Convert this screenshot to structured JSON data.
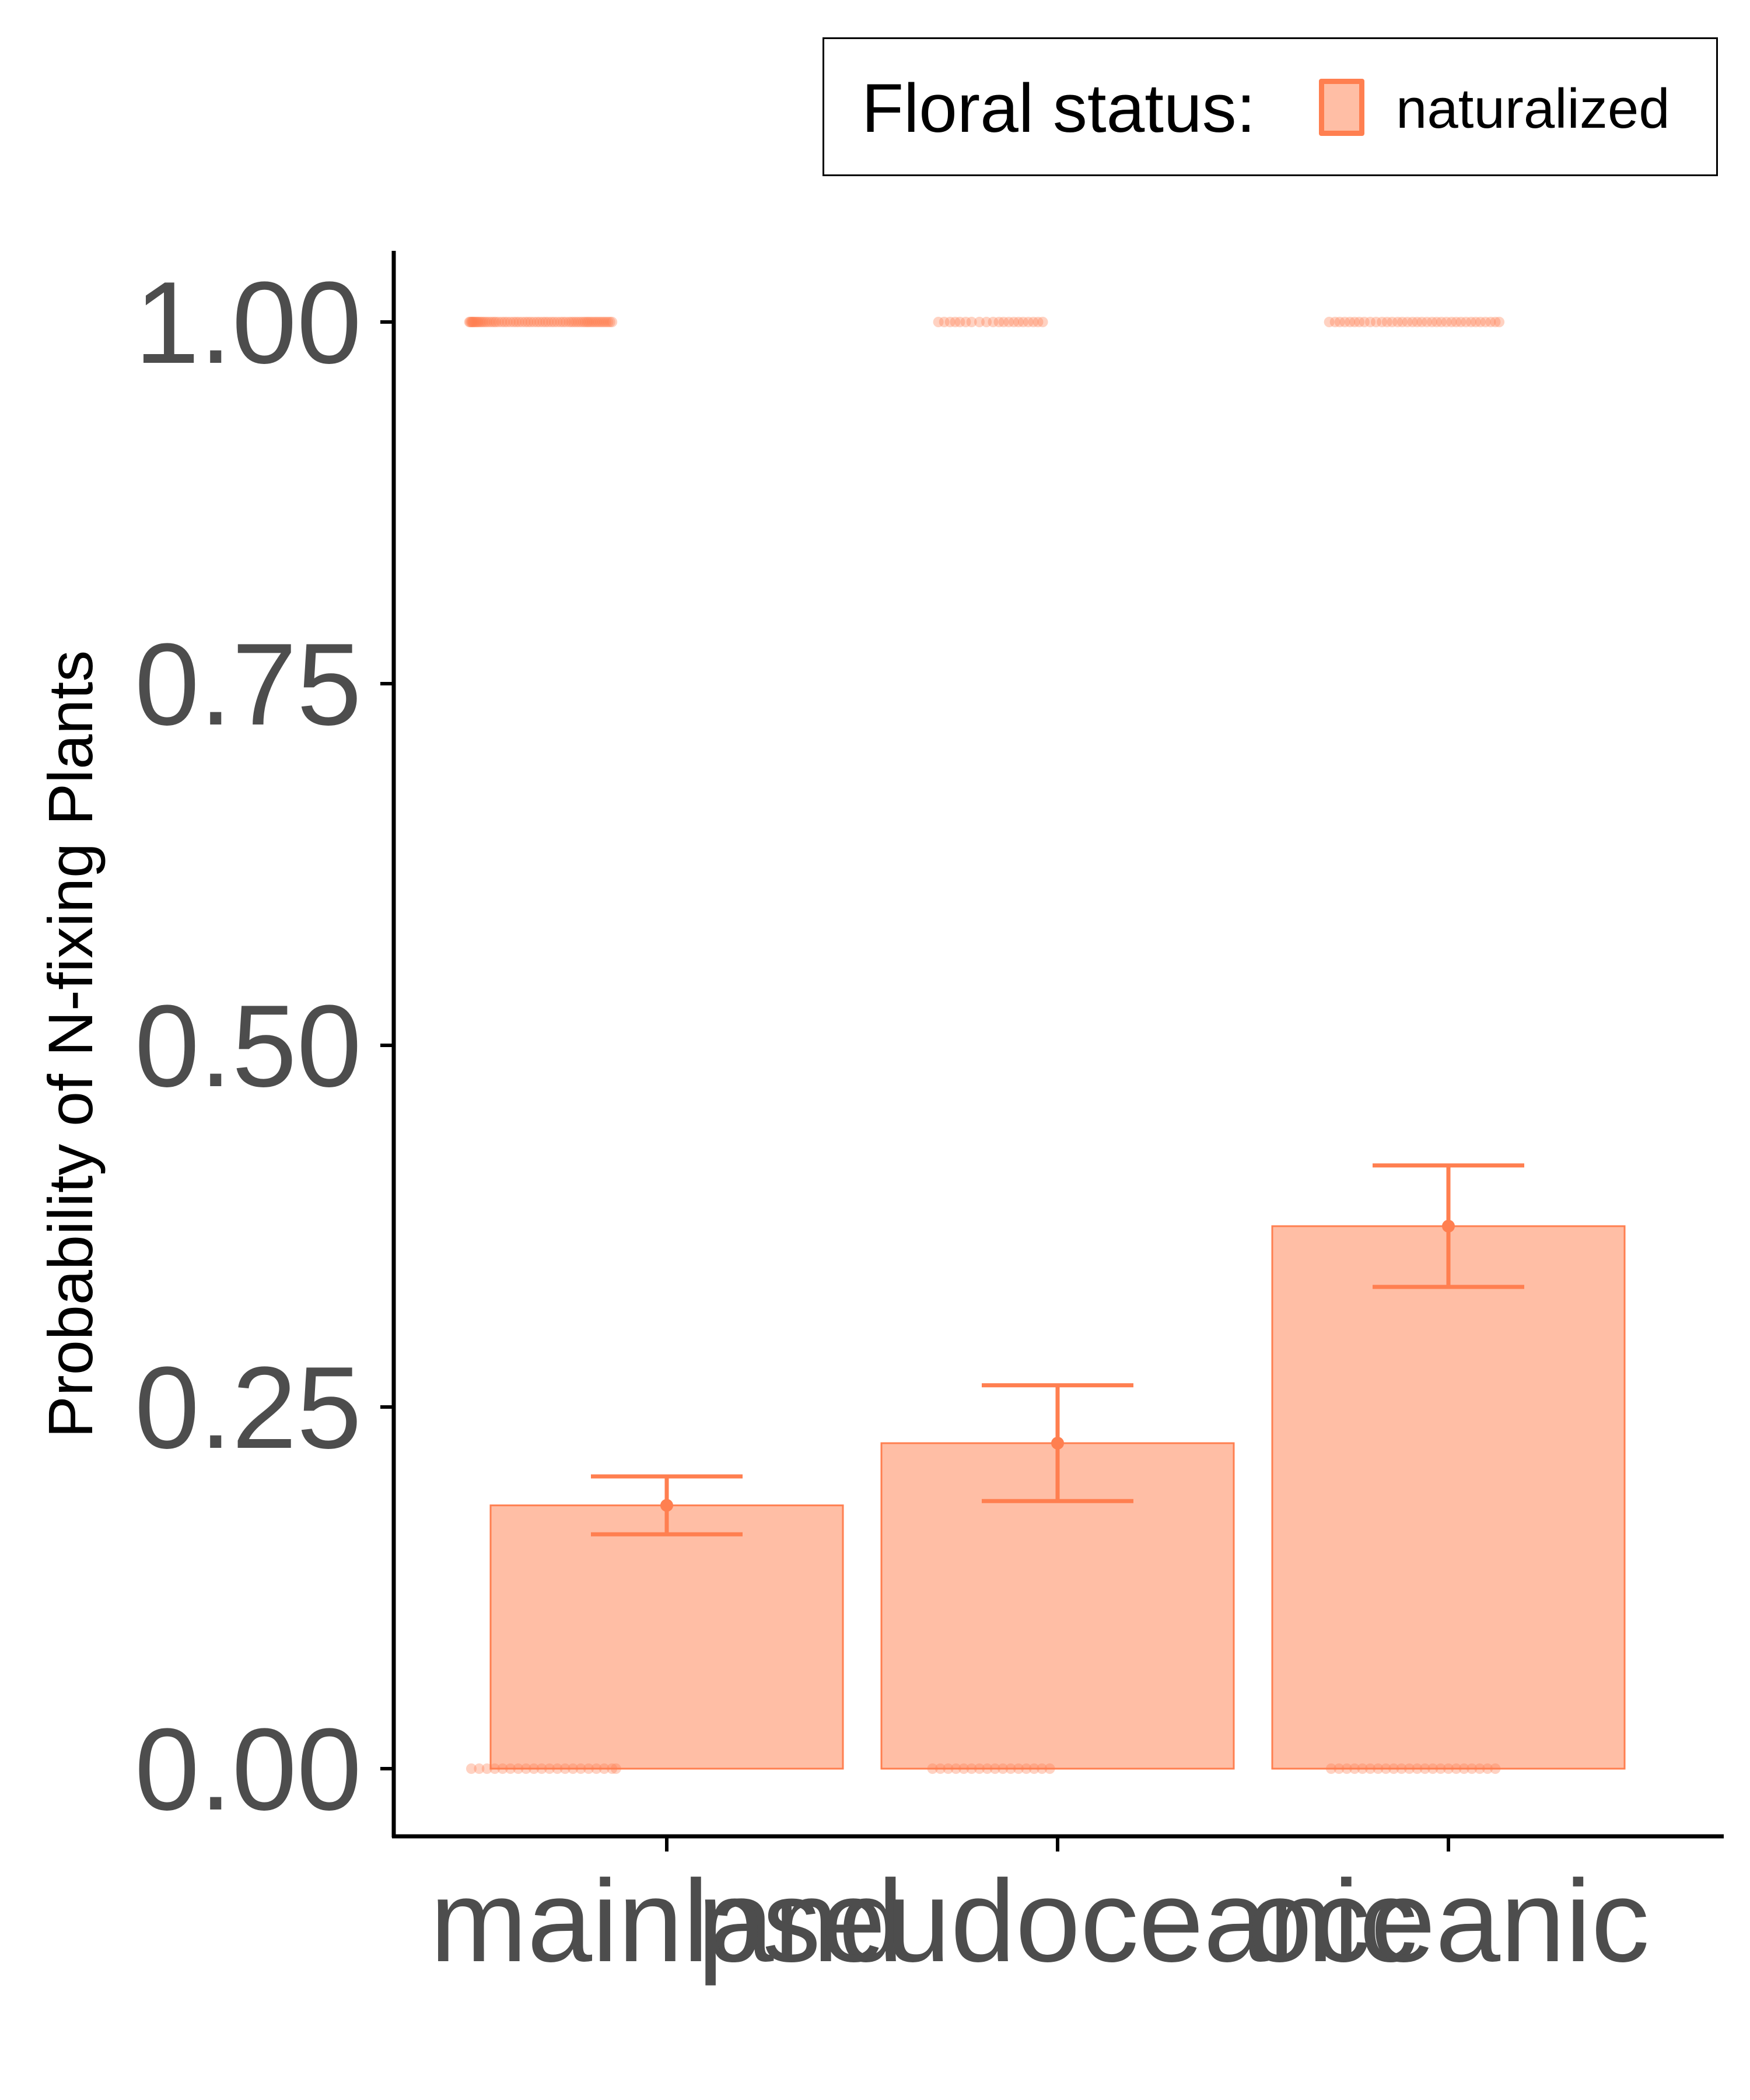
{
  "chart_data": {
    "type": "bar",
    "categories": [
      "mainland",
      "pseudoceanic",
      "oceanic"
    ],
    "series": [
      {
        "name": "naturalized",
        "values": [
          0.182,
          0.225,
          0.375
        ],
        "ci_lower": [
          0.162,
          0.185,
          0.333
        ],
        "ci_upper": [
          0.202,
          0.265,
          0.417
        ]
      }
    ],
    "observations": {
      "at_1": [
        [
          0.495,
          0.497,
          0.5,
          0.502,
          0.504,
          0.506,
          0.509,
          0.512,
          0.515,
          0.518,
          0.522,
          0.526,
          0.53,
          0.535,
          0.54,
          0.546,
          0.552,
          0.558,
          0.563,
          0.57,
          0.578,
          0.585,
          0.592,
          0.6,
          0.608,
          0.615,
          0.622,
          0.63,
          0.638,
          0.645,
          0.652,
          0.66,
          0.668,
          0.675,
          0.683,
          0.69,
          0.697,
          0.705,
          0.712,
          0.72,
          0.728,
          0.735,
          0.742,
          0.75,
          0.756,
          0.762,
          0.768,
          0.774,
          0.78,
          0.786,
          0.791,
          0.796,
          0.8,
          0.805,
          0.81,
          0.815,
          0.82,
          0.825,
          0.83,
          0.835,
          0.84,
          0.845,
          0.85,
          0.855,
          0.86
        ],
        [
          1.695,
          1.71,
          1.725,
          1.738,
          1.75,
          1.765,
          1.78,
          1.8,
          1.818,
          1.835,
          1.85,
          1.862,
          1.875,
          1.888,
          1.9,
          1.912,
          1.925,
          1.938,
          1.95,
          1.962
        ],
        [
          2.695,
          2.71,
          2.722,
          2.735,
          2.748,
          2.76,
          2.772,
          2.785,
          2.8,
          2.815,
          2.83,
          2.843,
          2.856,
          2.87,
          2.882,
          2.895,
          2.908,
          2.92,
          2.932,
          2.945,
          2.958,
          2.97,
          2.982,
          2.995,
          3.008,
          3.02,
          3.032,
          3.045,
          3.058,
          3.07,
          3.082,
          3.095,
          3.108,
          3.12,
          3.13
        ]
      ],
      "at_0": [
        [
          0.5,
          0.52,
          0.54,
          0.56,
          0.58,
          0.6,
          0.62,
          0.64,
          0.66,
          0.68,
          0.7,
          0.72,
          0.74,
          0.76,
          0.78,
          0.8,
          0.82,
          0.84,
          0.86,
          0.87
        ],
        [
          1.68,
          1.7,
          1.72,
          1.74,
          1.76,
          1.78,
          1.8,
          1.82,
          1.84,
          1.86,
          1.88,
          1.9,
          1.92,
          1.94,
          1.96,
          1.98
        ],
        [
          2.7,
          2.72,
          2.74,
          2.76,
          2.78,
          2.8,
          2.82,
          2.84,
          2.86,
          2.88,
          2.9,
          2.92,
          2.94,
          2.96,
          2.98,
          3.0,
          3.02,
          3.04,
          3.06,
          3.08,
          3.1,
          3.12
        ]
      ]
    },
    "yticks": [
      "0.00",
      "0.25",
      "0.50",
      "0.75",
      "1.00"
    ],
    "ytick_values": [
      0,
      0.25,
      0.5,
      0.75,
      1.0
    ],
    "ylabel": "Probability of N-fixing Plants",
    "xlabel": "",
    "ylim": [
      -0.05,
      1.05
    ],
    "legend_title": "Floral status:",
    "legend_placement": "top-right",
    "grid": false,
    "colors": {
      "fill": "#FFBEA5",
      "stroke": "#FF7F50",
      "axis_text": "#4D4D4D",
      "axis_line": "#000000"
    }
  }
}
